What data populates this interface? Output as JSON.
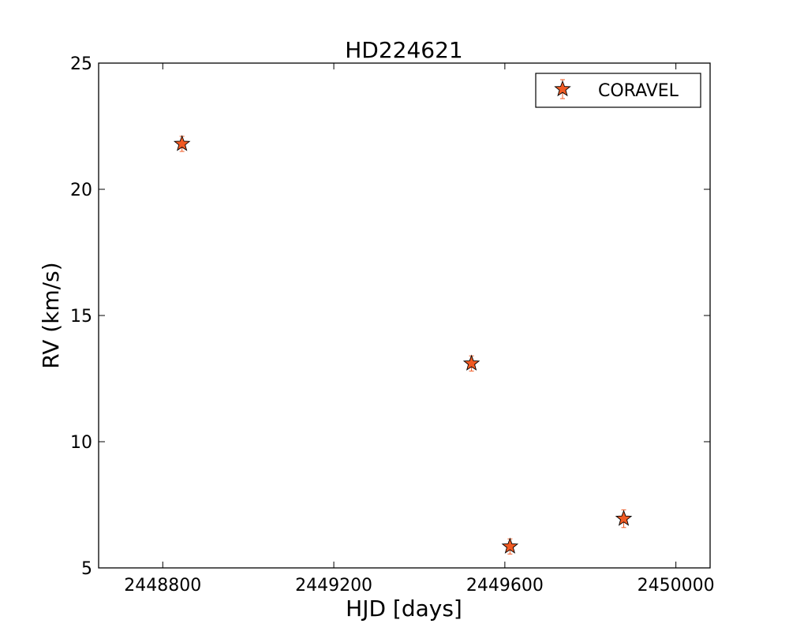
{
  "chart_data": {
    "type": "scatter",
    "title": "HD224621",
    "xlabel": "HJD [days]",
    "ylabel": "RV (km/s)",
    "xlim": [
      2448650,
      2450080
    ],
    "ylim": [
      5,
      25
    ],
    "xticks": [
      2448800,
      2449200,
      2449600,
      2450000
    ],
    "yticks": [
      5,
      10,
      15,
      20,
      25
    ],
    "grid": false,
    "legend_position": "top-right",
    "series": [
      {
        "name": "CORAVEL",
        "marker": "star",
        "color": "#f05a23",
        "errorbar_color": "#f05a23",
        "points": [
          {
            "x": 2448845,
            "y": 21.8,
            "yerr": 0.3
          },
          {
            "x": 2449522,
            "y": 13.1,
            "yerr": 0.3
          },
          {
            "x": 2449612,
            "y": 5.85,
            "yerr": 0.3
          },
          {
            "x": 2449878,
            "y": 6.95,
            "yerr": 0.35
          }
        ]
      }
    ]
  }
}
